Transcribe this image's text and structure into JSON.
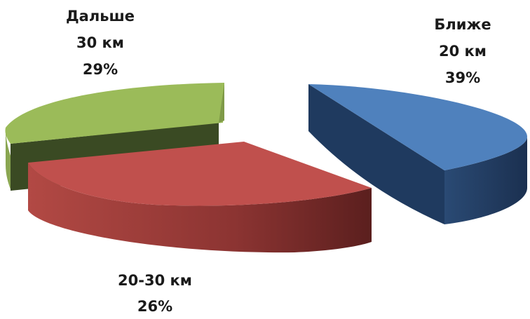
{
  "chart_data": {
    "type": "pie",
    "title": "",
    "legend": "none",
    "slices": [
      {
        "line1": "Ближе",
        "line2": "20 км",
        "percent_label": "39%",
        "value": 39,
        "color": "#4f81bd"
      },
      {
        "line1": "",
        "line2": "20-30 км",
        "percent_label": "26%",
        "value": 26,
        "color": "#c0504d"
      },
      {
        "line1": "Дальше",
        "line2": "30 км",
        "percent_label": "29%",
        "value": 29,
        "color": "#9bbb59"
      }
    ]
  }
}
